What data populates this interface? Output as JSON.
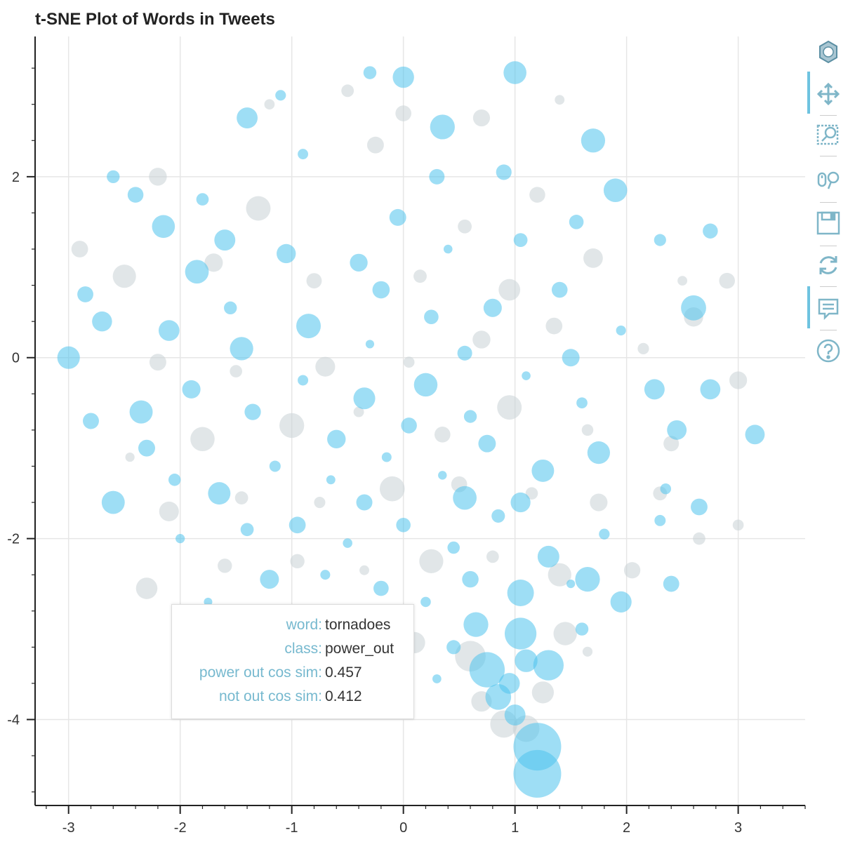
{
  "chart_data": {
    "type": "scatter",
    "title": "t-SNE Plot of Words in Tweets",
    "xlabel": "",
    "ylabel": "",
    "xlim": [
      -3.3,
      3.6
    ],
    "ylim": [
      -4.95,
      3.55
    ],
    "x_ticks": [
      -3,
      -2,
      -1,
      0,
      1,
      2,
      3
    ],
    "x_tick_labels": [
      "-3",
      "-2",
      "-1",
      "0",
      "1",
      "2",
      "3"
    ],
    "y_ticks": [
      -4,
      -2,
      0,
      2
    ],
    "y_tick_labels": [
      "-4",
      "-2",
      "0",
      "2"
    ],
    "grid": true,
    "legend": "none",
    "series": [
      {
        "color": "#4fc3ec",
        "points": [
          [
            -3.0,
            0.0
          ],
          [
            -2.85,
            0.7
          ],
          [
            -2.4,
            1.8
          ],
          [
            -2.6,
            2.0
          ],
          [
            -1.8,
            1.75
          ],
          [
            -1.4,
            2.65
          ],
          [
            -1.1,
            2.9
          ],
          [
            -0.3,
            3.15
          ],
          [
            0.0,
            3.1
          ],
          [
            1.0,
            3.15
          ],
          [
            0.35,
            2.55
          ],
          [
            1.7,
            2.4
          ],
          [
            -2.15,
            1.45
          ],
          [
            -1.6,
            1.3
          ],
          [
            -1.05,
            1.15
          ],
          [
            -0.4,
            1.05
          ],
          [
            0.4,
            1.2
          ],
          [
            1.05,
            1.3
          ],
          [
            1.55,
            1.5
          ],
          [
            2.3,
            1.3
          ],
          [
            2.75,
            1.4
          ],
          [
            -2.7,
            0.4
          ],
          [
            -2.1,
            0.3
          ],
          [
            -1.55,
            0.55
          ],
          [
            -0.85,
            0.35
          ],
          [
            -0.3,
            0.15
          ],
          [
            0.25,
            0.45
          ],
          [
            0.8,
            0.55
          ],
          [
            1.4,
            0.75
          ],
          [
            1.95,
            0.3
          ],
          [
            2.6,
            0.55
          ],
          [
            -2.8,
            -0.7
          ],
          [
            -2.35,
            -0.6
          ],
          [
            -1.9,
            -0.35
          ],
          [
            -1.35,
            -0.6
          ],
          [
            -0.9,
            -0.25
          ],
          [
            -0.35,
            -0.45
          ],
          [
            0.2,
            -0.3
          ],
          [
            0.6,
            -0.65
          ],
          [
            1.1,
            -0.2
          ],
          [
            1.6,
            -0.5
          ],
          [
            2.25,
            -0.35
          ],
          [
            2.75,
            -0.35
          ],
          [
            3.15,
            -0.85
          ],
          [
            -2.6,
            -1.6
          ],
          [
            -2.05,
            -1.35
          ],
          [
            -1.65,
            -1.5
          ],
          [
            -1.15,
            -1.2
          ],
          [
            -0.65,
            -1.35
          ],
          [
            -0.15,
            -1.1
          ],
          [
            0.35,
            -1.3
          ],
          [
            0.75,
            -0.95
          ],
          [
            1.25,
            -1.25
          ],
          [
            1.75,
            -1.05
          ],
          [
            2.35,
            -1.45
          ],
          [
            2.65,
            -1.65
          ],
          [
            -2.0,
            -2.0
          ],
          [
            -1.4,
            -1.9
          ],
          [
            -0.95,
            -1.85
          ],
          [
            -0.5,
            -2.05
          ],
          [
            0.0,
            -1.85
          ],
          [
            0.45,
            -2.1
          ],
          [
            0.85,
            -1.75
          ],
          [
            1.3,
            -2.2
          ],
          [
            1.8,
            -1.95
          ],
          [
            2.3,
            -1.8
          ],
          [
            -1.75,
            -2.7
          ],
          [
            -1.2,
            -2.45
          ],
          [
            -0.7,
            -2.4
          ],
          [
            -0.2,
            -2.55
          ],
          [
            0.2,
            -2.7
          ],
          [
            0.6,
            -2.45
          ],
          [
            1.05,
            -2.6
          ],
          [
            1.5,
            -2.5
          ],
          [
            1.95,
            -2.7
          ],
          [
            2.4,
            -2.5
          ],
          [
            -0.05,
            -3.05
          ],
          [
            0.45,
            -3.2
          ],
          [
            0.75,
            -3.45
          ],
          [
            1.05,
            -3.05
          ],
          [
            1.3,
            -3.4
          ],
          [
            1.6,
            -3.0
          ],
          [
            0.85,
            -3.75
          ],
          [
            1.0,
            -3.95
          ],
          [
            1.2,
            -4.3
          ],
          [
            1.2,
            -4.6
          ],
          [
            0.95,
            -3.6
          ],
          [
            1.1,
            -3.35
          ],
          [
            0.65,
            -2.95
          ],
          [
            0.3,
            -3.55
          ],
          [
            -0.6,
            -0.9
          ],
          [
            0.05,
            -0.75
          ],
          [
            0.55,
            0.05
          ],
          [
            1.5,
            0.0
          ],
          [
            -1.85,
            0.95
          ],
          [
            -0.2,
            0.75
          ],
          [
            0.9,
            2.05
          ],
          [
            -0.9,
            2.25
          ],
          [
            1.9,
            1.85
          ],
          [
            2.45,
            -0.8
          ],
          [
            -2.3,
            -1.0
          ],
          [
            0.55,
            -1.55
          ],
          [
            1.05,
            -1.6
          ],
          [
            -0.35,
            -1.6
          ],
          [
            1.65,
            -2.45
          ],
          [
            -1.45,
            0.1
          ],
          [
            0.3,
            2.0
          ],
          [
            -0.05,
            1.55
          ]
        ]
      },
      {
        "color": "#c9d1d6",
        "points": [
          [
            -2.9,
            1.2
          ],
          [
            -2.2,
            2.0
          ],
          [
            -1.2,
            2.8
          ],
          [
            -0.5,
            2.95
          ],
          [
            0.0,
            2.7
          ],
          [
            0.7,
            2.65
          ],
          [
            1.4,
            2.85
          ],
          [
            -2.5,
            0.9
          ],
          [
            -1.7,
            1.05
          ],
          [
            -0.8,
            0.85
          ],
          [
            0.15,
            0.9
          ],
          [
            0.95,
            0.75
          ],
          [
            1.7,
            1.1
          ],
          [
            2.5,
            0.85
          ],
          [
            -2.2,
            -0.05
          ],
          [
            -1.5,
            -0.15
          ],
          [
            -0.7,
            -0.1
          ],
          [
            0.05,
            -0.05
          ],
          [
            0.7,
            0.2
          ],
          [
            1.35,
            0.35
          ],
          [
            2.15,
            0.1
          ],
          [
            -2.45,
            -1.1
          ],
          [
            -1.8,
            -0.9
          ],
          [
            -1.0,
            -0.75
          ],
          [
            -0.4,
            -0.6
          ],
          [
            0.35,
            -0.85
          ],
          [
            0.95,
            -0.55
          ],
          [
            1.65,
            -0.8
          ],
          [
            2.4,
            -0.95
          ],
          [
            3.0,
            -0.25
          ],
          [
            -2.1,
            -1.7
          ],
          [
            -1.45,
            -1.55
          ],
          [
            -0.75,
            -1.6
          ],
          [
            -0.1,
            -1.45
          ],
          [
            0.5,
            -1.4
          ],
          [
            1.15,
            -1.5
          ],
          [
            1.75,
            -1.6
          ],
          [
            2.3,
            -1.5
          ],
          [
            3.0,
            -1.85
          ],
          [
            -2.3,
            -2.55
          ],
          [
            -1.6,
            -2.3
          ],
          [
            -0.95,
            -2.25
          ],
          [
            -0.35,
            -2.35
          ],
          [
            0.25,
            -2.25
          ],
          [
            0.8,
            -2.2
          ],
          [
            1.4,
            -2.4
          ],
          [
            2.05,
            -2.35
          ],
          [
            2.65,
            -2.0
          ],
          [
            -1.1,
            -2.85
          ],
          [
            -0.45,
            -2.9
          ],
          [
            0.1,
            -3.15
          ],
          [
            0.6,
            -3.3
          ],
          [
            1.25,
            -3.7
          ],
          [
            1.45,
            -3.05
          ],
          [
            0.9,
            -4.05
          ],
          [
            1.65,
            -3.25
          ],
          [
            0.7,
            -3.8
          ],
          [
            1.1,
            -4.1
          ],
          [
            -0.05,
            -3.5
          ],
          [
            2.6,
            0.45
          ],
          [
            -1.3,
            1.65
          ],
          [
            0.55,
            1.45
          ],
          [
            1.2,
            1.8
          ],
          [
            -0.25,
            2.35
          ],
          [
            2.9,
            0.85
          ]
        ]
      }
    ]
  },
  "tooltip": {
    "rows": [
      {
        "key": "word:",
        "value": "tornadoes"
      },
      {
        "key": "class:",
        "value": "power_out"
      },
      {
        "key": "power out cos sim:",
        "value": "0.457"
      },
      {
        "key": "not out cos sim:",
        "value": "0.412"
      }
    ]
  },
  "toolbar": {
    "tools": [
      "logo-icon",
      "pan-icon",
      "box-zoom-icon",
      "wheel-zoom-icon",
      "save-icon",
      "reset-icon",
      "hover-icon",
      "help-icon"
    ],
    "accent_color": "#6ec3e0",
    "icon_color": "#7fb6c8"
  },
  "colors": {
    "grid": "#e6e6e6",
    "axis": "#222222"
  }
}
